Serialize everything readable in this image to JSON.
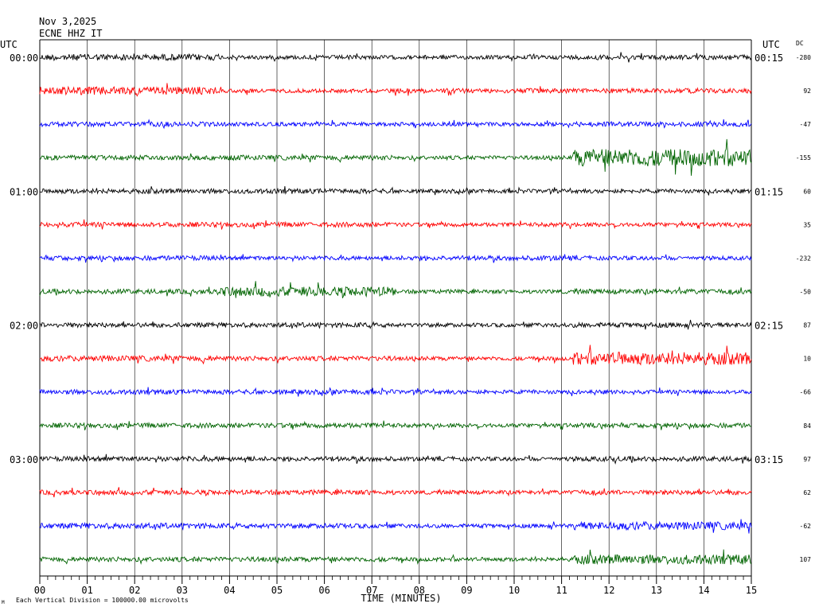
{
  "header": {
    "date": "Nov 3,2025",
    "station": "ECNE HHZ IT"
  },
  "labels": {
    "left_tz": "UTC",
    "right_tz": "UTC",
    "dc": "DC",
    "xlabel": "TIME (MINUTES)",
    "footer_mark": "M",
    "footer": "Each Vertical Division = 100000.00 microvolts"
  },
  "colors": {
    "trace_cycle": [
      "#000000",
      "#ff0000",
      "#0000ff",
      "#006400"
    ],
    "grid": "#000000"
  },
  "chart_data": {
    "type": "line",
    "title": "",
    "xlabel": "TIME (MINUTES)",
    "ylabel": "",
    "xlim": [
      0,
      15
    ],
    "x_ticks": [
      "00",
      "01",
      "02",
      "03",
      "04",
      "05",
      "06",
      "07",
      "08",
      "09",
      "10",
      "11",
      "12",
      "13",
      "14",
      "15"
    ],
    "grid": true,
    "rows": 16,
    "minutes_per_row": 15,
    "left_hour_labels": [
      "00:00",
      "",
      "",
      "",
      "01:00",
      "",
      "",
      "",
      "02:00",
      "",
      "",
      "",
      "03:00",
      "",
      "",
      ""
    ],
    "right_hour_labels": [
      "00:15",
      "",
      "",
      "",
      "01:15",
      "",
      "",
      "",
      "02:15",
      "",
      "",
      "",
      "03:15",
      "",
      "",
      ""
    ],
    "dc_offsets": [
      "-280",
      "92",
      "-47",
      "-155",
      "60",
      "35",
      "-232",
      "-50",
      "87",
      "10",
      "-66",
      "84",
      "97",
      "62",
      "-62",
      "107"
    ],
    "series": [
      {
        "values": [
          4,
          2.5,
          2.5,
          3
        ]
      },
      {
        "values": [
          5,
          2.5,
          3,
          3
        ]
      },
      {
        "values": [
          3,
          2.5,
          2.5,
          3
        ]
      },
      {
        "values": [
          3,
          3,
          2.5,
          11
        ]
      },
      {
        "values": [
          3,
          3,
          2.5,
          2.5
        ]
      },
      {
        "values": [
          3,
          3,
          2.5,
          2.5
        ]
      },
      {
        "values": [
          3,
          2.5,
          3,
          2.5
        ]
      },
      {
        "values": [
          3,
          6,
          2.5,
          3
        ]
      },
      {
        "values": [
          3,
          3,
          2.5,
          3
        ]
      },
      {
        "values": [
          3.5,
          3,
          2.5,
          8
        ]
      },
      {
        "values": [
          3,
          3,
          2.5,
          2.5
        ]
      },
      {
        "values": [
          3,
          3,
          2.5,
          3
        ]
      },
      {
        "values": [
          3,
          3,
          2.5,
          3
        ]
      },
      {
        "values": [
          3,
          3,
          2.5,
          3
        ]
      },
      {
        "values": [
          3.5,
          3,
          2.5,
          5
        ]
      },
      {
        "values": [
          3,
          3,
          2.5,
          6
        ]
      }
    ]
  }
}
